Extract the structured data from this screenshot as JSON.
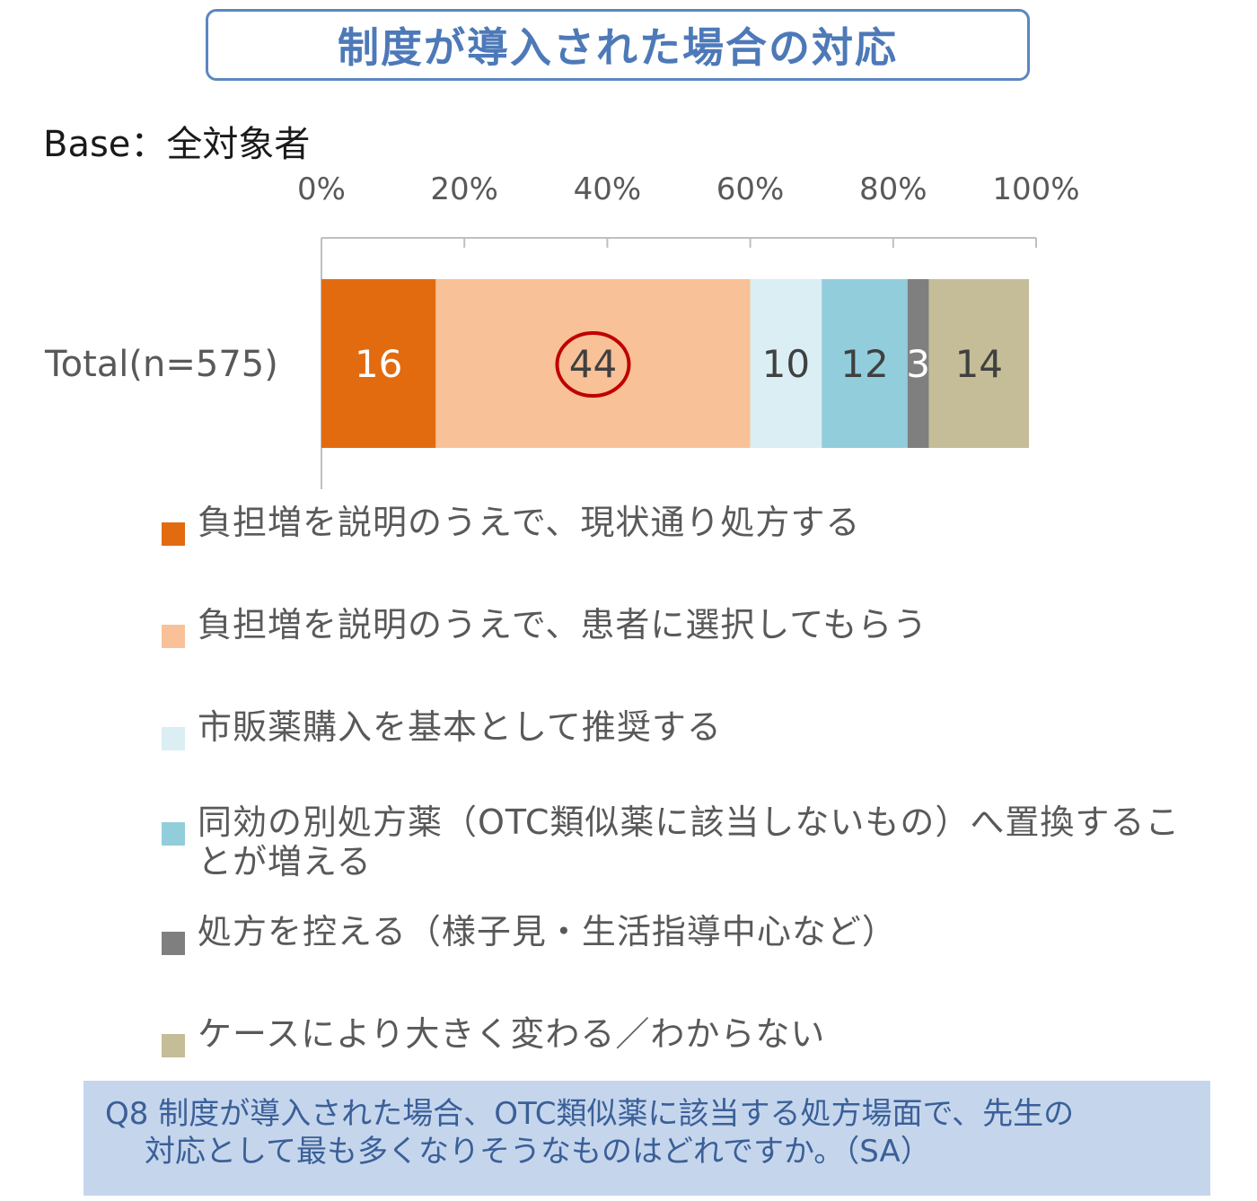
{
  "title": "制度が導入された場合の対応",
  "base_label": "Base：全対象者",
  "chart_data": {
    "type": "bar",
    "orientation": "horizontal",
    "stacked": true,
    "percent": true,
    "categories": [
      "Total(n=575)"
    ],
    "x_ticks": [
      "0%",
      "20%",
      "40%",
      "60%",
      "80%",
      "100%"
    ],
    "xlim": [
      0,
      100
    ],
    "series": [
      {
        "name": "負担増を説明のうえで、現状通り処方する",
        "values": [
          16
        ],
        "color": "#e26b10",
        "label_color": "#ffffff"
      },
      {
        "name": "負担増を説明のうえで、患者に選択してもらう",
        "values": [
          44
        ],
        "color": "#f8c197",
        "label_color": "#404040",
        "highlight": true
      },
      {
        "name": "市販薬購入を基本として推奨する",
        "values": [
          10
        ],
        "color": "#daeef3",
        "label_color": "#404040"
      },
      {
        "name": "同効の別処方薬（OTC類似薬に該当しないもの）へ置換することが増える",
        "values": [
          12
        ],
        "color": "#92cddc",
        "label_color": "#404040"
      },
      {
        "name": "処方を控える（様子見・生活指導中心など）",
        "values": [
          3
        ],
        "color": "#7f7f7f",
        "label_color": "#ffffff"
      },
      {
        "name": "ケースにより大きく変わる／わからない",
        "values": [
          14
        ],
        "color": "#c4bd97",
        "label_color": "#404040"
      }
    ],
    "highlight_color": "#c00000",
    "legend_position": "bottom"
  },
  "question": {
    "line1": "Q8  制度が導入された場合、OTC類似薬に該当する処方場面で、先生の",
    "line2": "対応として最も多くなりそうなものはどれですか。（SA）"
  }
}
